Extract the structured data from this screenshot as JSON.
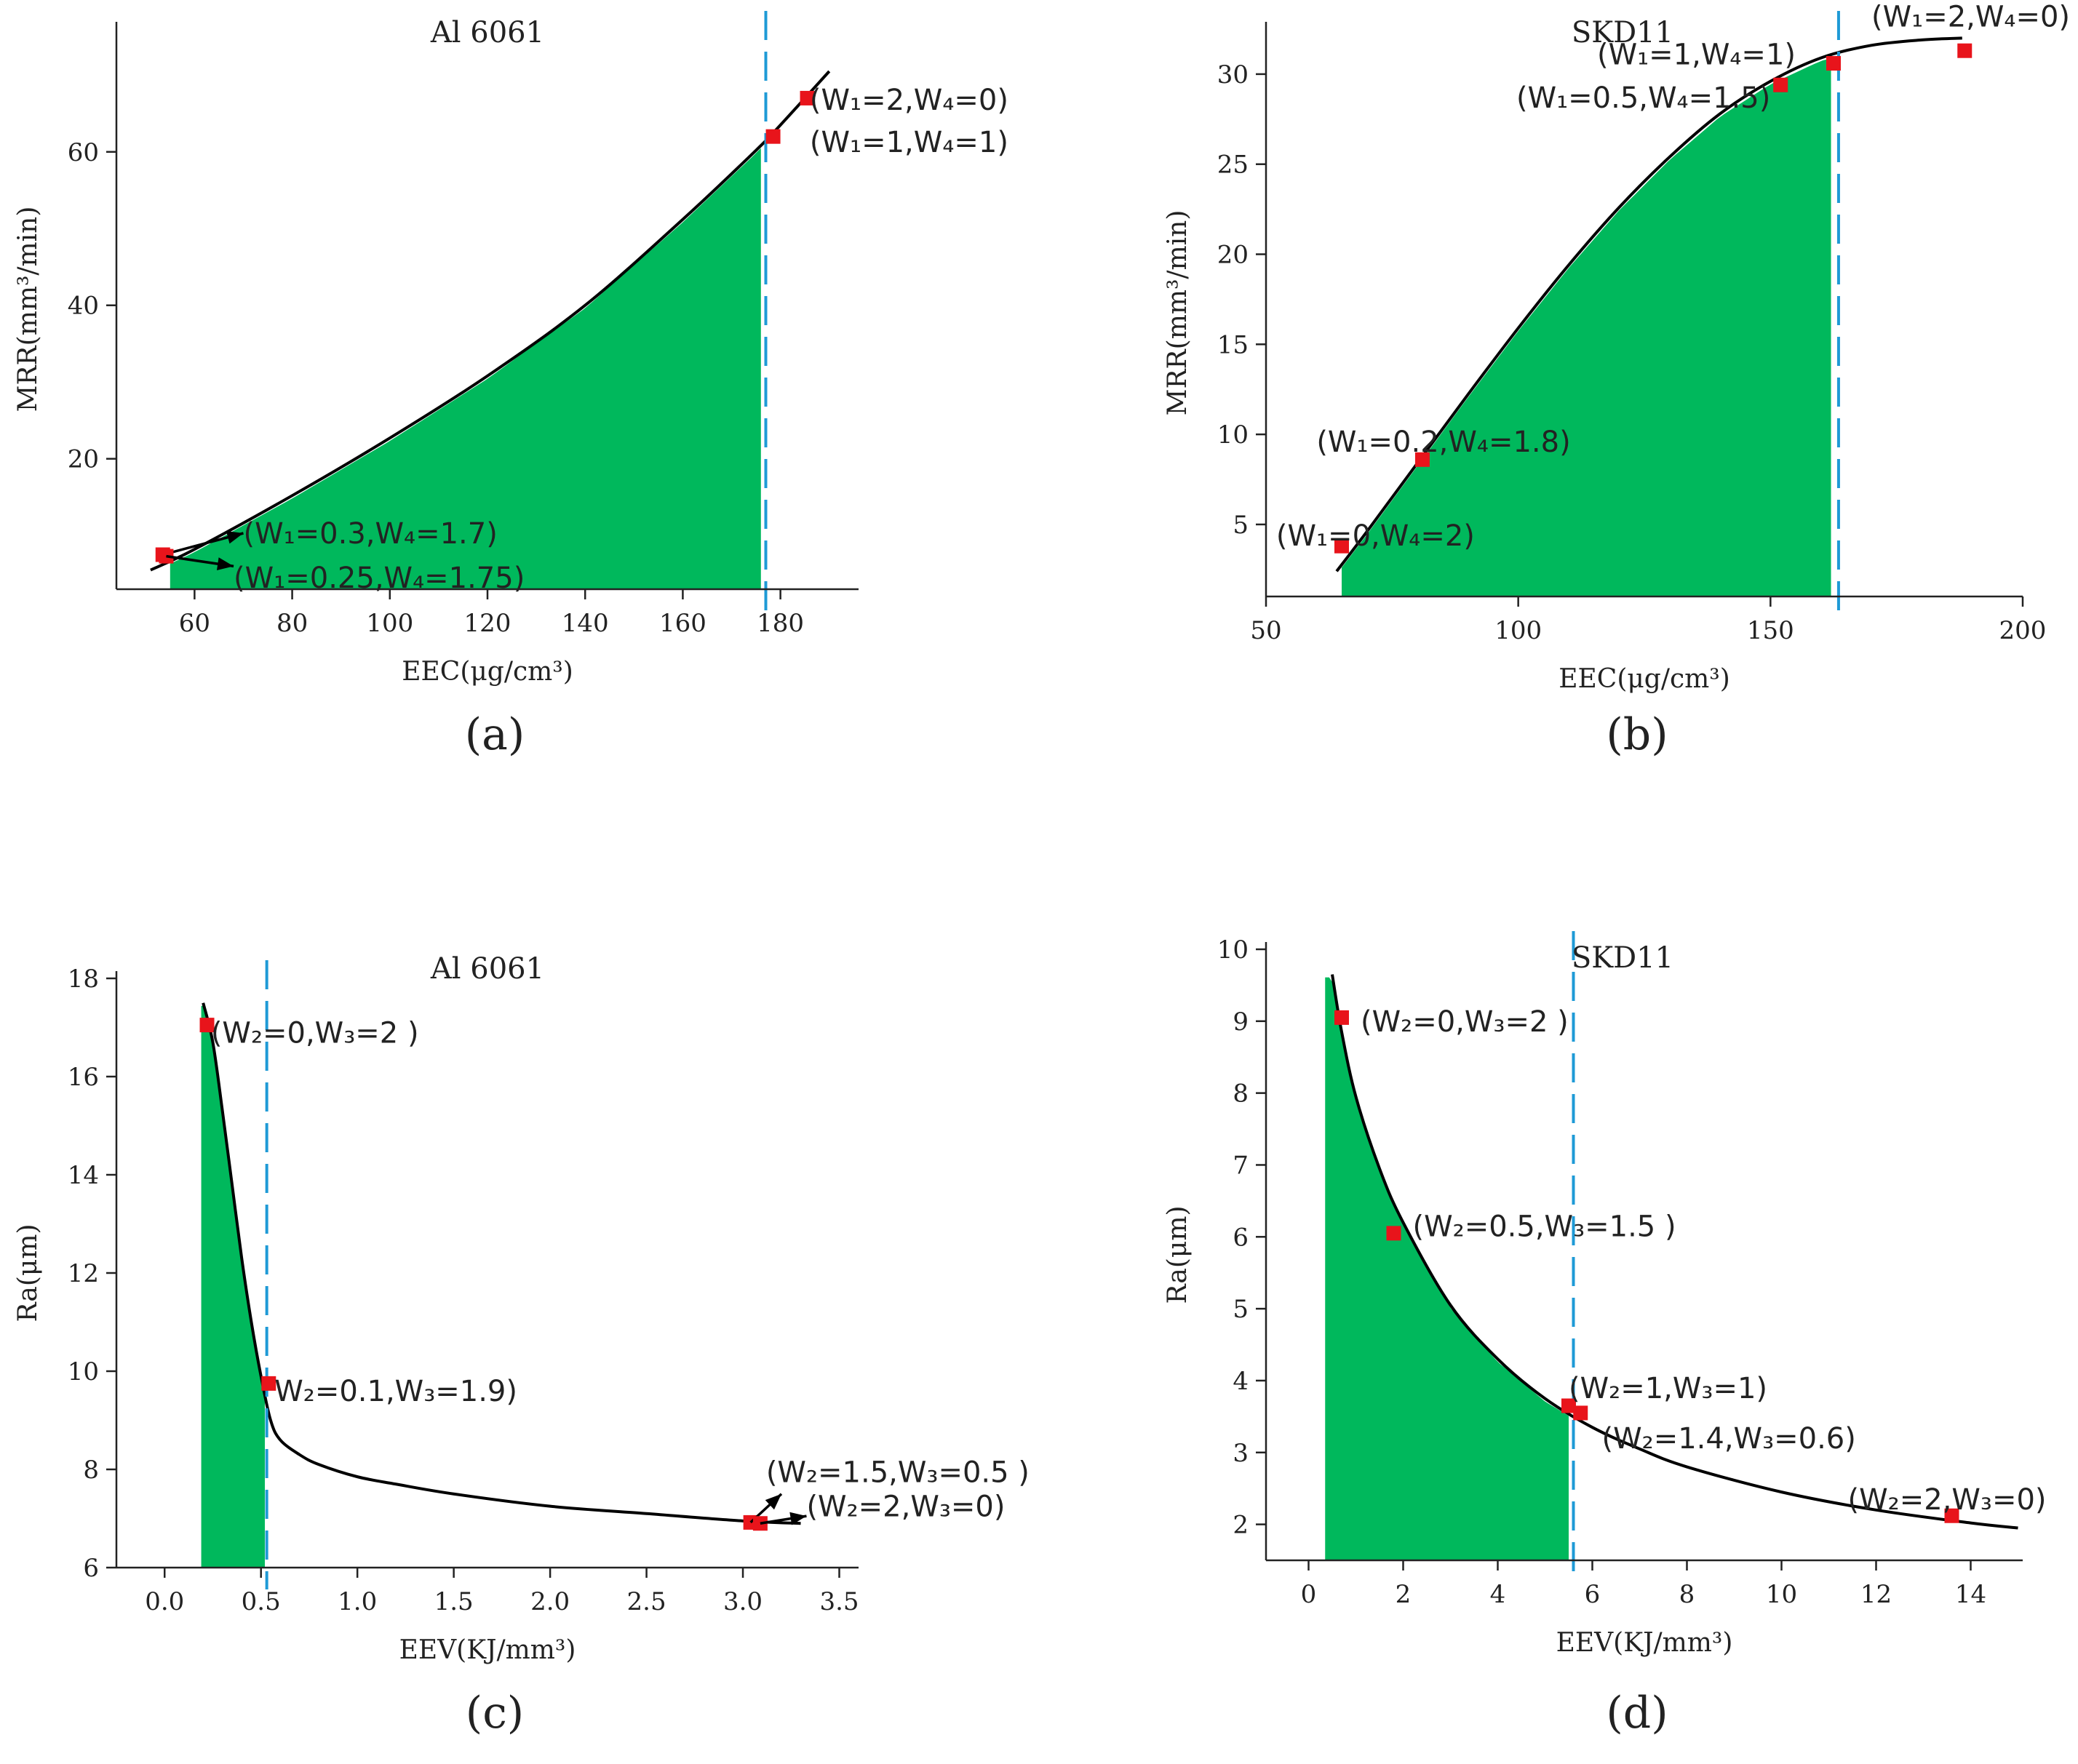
{
  "colors": {
    "fill": "#00b85c",
    "curve": "#000000",
    "vline": "#1e9ad6",
    "point": "#e8141b"
  },
  "chart_data": [
    {
      "id": "a",
      "type": "line",
      "caption": "(a)",
      "title": "Al 6061",
      "xlabel": "EEC(μg/cm³)",
      "ylabel": "MRR(mm³/min)",
      "xlim": [
        44,
        196
      ],
      "ylim": [
        3,
        76
      ],
      "xticks": [
        60,
        80,
        100,
        120,
        140,
        160,
        180
      ],
      "yticks": [
        20,
        40,
        60
      ],
      "curve": {
        "x": [
          51,
          60,
          80,
          100,
          120,
          140,
          160,
          175,
          180,
          190
        ],
        "y": [
          5.5,
          8.2,
          15.2,
          22.7,
          30.8,
          40.0,
          51.2,
          60.2,
          63.5,
          70.5
        ]
      },
      "fill": {
        "x_from": 55,
        "x_to": 176
      },
      "vline": 177,
      "points": [
        {
          "x": 53.5,
          "y": 7.5,
          "label": "(W₁=0.3,W₄=1.7)",
          "anchor": "start",
          "arrow_to": [
            70,
            10.3
          ],
          "label_at": [
            70,
            10.3
          ]
        },
        {
          "x": 54.2,
          "y": 7.3,
          "label": "(W₁=0.25,W₄=1.75)",
          "anchor": "start",
          "arrow_to": [
            68,
            6.0
          ],
          "label_at": [
            68,
            4.5
          ]
        },
        {
          "x": 178.5,
          "y": 62.0,
          "label": "(W₁=1,W₄=1)",
          "anchor": "start",
          "label_at": [
            186,
            61.3
          ]
        },
        {
          "x": 185.5,
          "y": 67.0,
          "label": "(W₁=2,W₄=0)",
          "anchor": "start",
          "label_at": [
            186,
            66.8
          ]
        }
      ]
    },
    {
      "id": "b",
      "type": "line",
      "caption": "(b)",
      "title": "SKD11",
      "xlabel": "EEC(μg/cm³)",
      "ylabel": "MRR(mm³/min)",
      "xlim": [
        50,
        200
      ],
      "ylim": [
        1,
        32.5
      ],
      "xticks": [
        50,
        100,
        150,
        200
      ],
      "yticks": [
        5,
        10,
        15,
        20,
        25,
        30
      ],
      "curve": {
        "x": [
          64,
          70,
          80,
          90,
          100,
          110,
          120,
          130,
          140,
          150,
          160,
          170,
          180,
          188
        ],
        "y": [
          2.4,
          4.6,
          8.4,
          12.2,
          15.9,
          19.4,
          22.6,
          25.4,
          27.8,
          29.6,
          30.9,
          31.6,
          31.9,
          32.0
        ]
      },
      "fill": {
        "x_from": 65,
        "x_to": 162
      },
      "vline": 163.5,
      "points": [
        {
          "x": 65.0,
          "y": 3.8,
          "label": "(W₁=0,W₄=2)",
          "anchor": "start",
          "label_at": [
            52,
            4.4
          ]
        },
        {
          "x": 81.0,
          "y": 8.6,
          "label": "(W₁=0.2,W₄=1.8)",
          "anchor": "start",
          "label_at": [
            60,
            9.6
          ]
        },
        {
          "x": 152.0,
          "y": 29.4,
          "label": "(W₁=0.5,W₄=1.5)",
          "anchor": "end",
          "label_at": [
            150,
            28.7
          ]
        },
        {
          "x": 162.5,
          "y": 30.6,
          "label": "(W₁=1,W₄=1)",
          "anchor": "end",
          "label_at": [
            155,
            31.1
          ]
        },
        {
          "x": 188.5,
          "y": 31.3,
          "label": "(W₁=2,W₄=0)",
          "anchor": "start",
          "label_at": [
            170,
            33.2
          ]
        }
      ]
    },
    {
      "id": "c",
      "type": "line",
      "caption": "(c)",
      "title": "Al 6061",
      "xlabel": "EEV(KJ/mm³)",
      "ylabel": "Ra(μm)",
      "xlim": [
        -0.25,
        3.6
      ],
      "ylim": [
        6,
        18
      ],
      "xticks": [
        0.0,
        0.5,
        1.0,
        1.5,
        2.0,
        2.5,
        3.0,
        3.5
      ],
      "xtick_labels": [
        "0.0",
        "0.5",
        "1.0",
        "1.5",
        "2.0",
        "2.5",
        "3.0",
        "3.5"
      ],
      "yticks": [
        6,
        8,
        10,
        12,
        14,
        16,
        18
      ],
      "curve": {
        "x": [
          0.2,
          0.25,
          0.3,
          0.35,
          0.4,
          0.45,
          0.5,
          0.55,
          0.6,
          0.7,
          0.8,
          1.0,
          1.2,
          1.5,
          2.0,
          2.5,
          3.0,
          3.3
        ],
        "y": [
          17.5,
          16.7,
          15.3,
          13.8,
          12.3,
          11.0,
          9.9,
          9.0,
          8.6,
          8.3,
          8.1,
          7.85,
          7.7,
          7.5,
          7.25,
          7.1,
          6.95,
          6.9
        ]
      },
      "fill": {
        "x_from": 0.19,
        "x_to": 0.52
      },
      "vline": 0.53,
      "points": [
        {
          "x": 0.22,
          "y": 17.05,
          "label": "(W₂=0,W₃=2 )",
          "anchor": "start",
          "label_at": [
            0.24,
            16.9
          ]
        },
        {
          "x": 0.54,
          "y": 9.75,
          "label": "W₂=0.1,W₃=1.9)",
          "anchor": "start",
          "label_at": [
            0.57,
            9.6
          ]
        },
        {
          "x": 3.04,
          "y": 6.92,
          "label": "(W₂=1.5,W₃=0.5 )",
          "anchor": "start",
          "arrow_to": [
            3.2,
            7.5
          ],
          "label_at": [
            3.12,
            7.95
          ]
        },
        {
          "x": 3.09,
          "y": 6.9,
          "label": "(W₂=2,W₃=0)",
          "anchor": "start",
          "arrow_to": [
            3.33,
            7.05
          ],
          "label_at": [
            3.33,
            7.25
          ]
        }
      ]
    },
    {
      "id": "d",
      "type": "line",
      "caption": "(d)",
      "title": "SKD11",
      "xlabel": "EEV(KJ/mm³)",
      "ylabel": "Ra(μm)",
      "xlim": [
        -0.9,
        15.1
      ],
      "ylim": [
        1.5,
        10
      ],
      "xticks": [
        0,
        2,
        4,
        6,
        8,
        10,
        12,
        14
      ],
      "yticks": [
        2,
        3,
        4,
        5,
        6,
        7,
        8,
        9,
        10
      ],
      "curve": {
        "x": [
          0.5,
          0.7,
          1.0,
          1.5,
          2.0,
          3.0,
          4.0,
          5.0,
          6.0,
          7.0,
          8.0,
          10.0,
          12.0,
          14.0,
          15.0
        ],
        "y": [
          9.65,
          8.85,
          7.95,
          6.95,
          6.2,
          5.05,
          4.3,
          3.75,
          3.35,
          3.05,
          2.8,
          2.45,
          2.2,
          2.02,
          1.95
        ]
      },
      "fill": {
        "x_from": 0.35,
        "x_to": 5.5
      },
      "vline": 5.6,
      "points": [
        {
          "x": 0.7,
          "y": 9.05,
          "label": "(W₂=0,W₃=2 )",
          "anchor": "start",
          "label_at": [
            1.1,
            9.0
          ]
        },
        {
          "x": 1.8,
          "y": 6.05,
          "label": "(W₂=0.5,W₃=1.5 )",
          "anchor": "start",
          "label_at": [
            2.2,
            6.15
          ]
        },
        {
          "x": 5.5,
          "y": 3.65,
          "label": "(W₂=1,W₃=1)",
          "anchor": "start",
          "label_at": [
            5.5,
            3.9
          ]
        },
        {
          "x": 5.75,
          "y": 3.55,
          "label": "(W₂=1.4,W₃=0.6)",
          "anchor": "start",
          "label_at": [
            6.2,
            3.2
          ]
        },
        {
          "x": 13.6,
          "y": 2.12,
          "label": "(W₂=2,W₃=0)",
          "anchor": "start",
          "label_at": [
            11.4,
            2.35
          ]
        }
      ]
    }
  ]
}
